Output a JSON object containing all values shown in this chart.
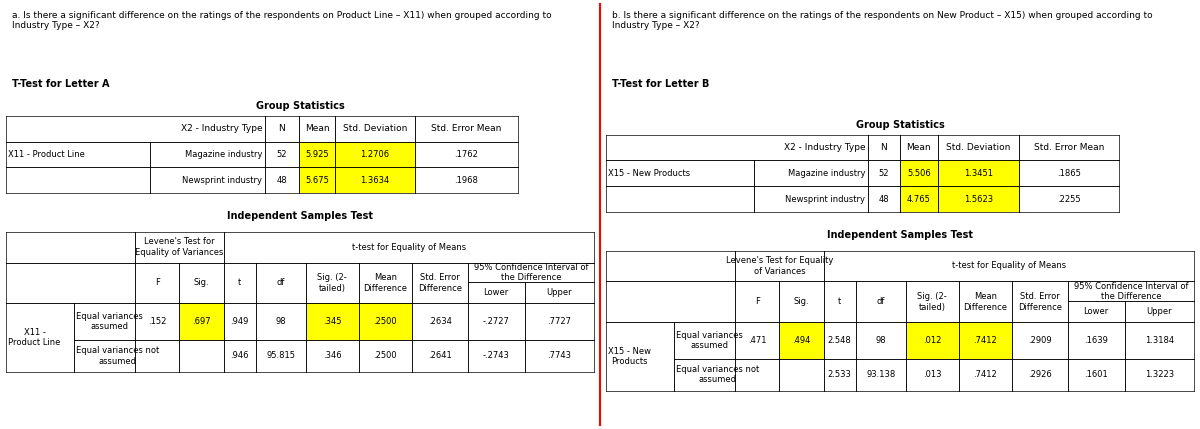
{
  "bg_color": "#ffffff",
  "divider_color": "#ff0000",
  "title_a": "a. Is there a significant difference on the ratings of the respondents on Product Line – X11) when grouped according to\nIndustry Type – X2?",
  "title_b": "b. Is there a significant difference on the ratings of the respondents on New Product – X15) when grouped according to\nIndustry Type – X2?",
  "label_a": "T-Test for Letter A",
  "label_b": "T-Test for Letter B",
  "gs_title": "Group Statistics",
  "ist_title": "Independent Samples Test",
  "yellow": "#ffff00",
  "black": "#000000",
  "white": "#ffffff",
  "font_family": "DejaVu Sans",
  "font_size": 6.5
}
